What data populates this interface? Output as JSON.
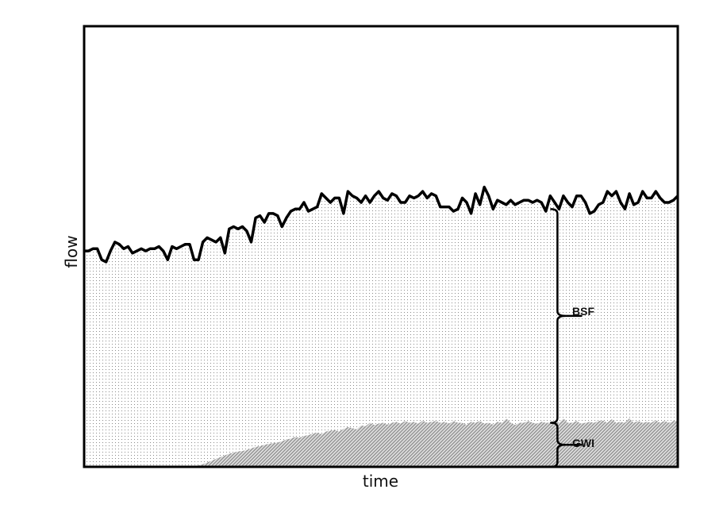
{
  "chart_data": {
    "type": "area",
    "xlabel": "time",
    "ylabel": "flow",
    "ticks": "none",
    "annotations": [
      "BSF",
      "GWI"
    ],
    "series": [
      {
        "role": "total",
        "style": "thick black line over dotted fill",
        "values": [
          0.49,
          0.49,
          0.495,
          0.495,
          0.47,
          0.465,
          0.49,
          0.51,
          0.505,
          0.495,
          0.5,
          0.485,
          0.49,
          0.495,
          0.49,
          0.495,
          0.495,
          0.5,
          0.49,
          0.47,
          0.5,
          0.495,
          0.5,
          0.505,
          0.505,
          0.47,
          0.47,
          0.51,
          0.52,
          0.515,
          0.51,
          0.52,
          0.485,
          0.54,
          0.545,
          0.54,
          0.545,
          0.535,
          0.51,
          0.565,
          0.57,
          0.555,
          0.575,
          0.575,
          0.57,
          0.545,
          0.565,
          0.58,
          0.585,
          0.585,
          0.6,
          0.58,
          0.585,
          0.59,
          0.62,
          0.61,
          0.6,
          0.61,
          0.61,
          0.575,
          0.625,
          0.615,
          0.61,
          0.6,
          0.615,
          0.6,
          0.615,
          0.625,
          0.61,
          0.605,
          0.62,
          0.615,
          0.6,
          0.6,
          0.615,
          0.61,
          0.615,
          0.625,
          0.61,
          0.62,
          0.615,
          0.59,
          0.59,
          0.59,
          0.58,
          0.585,
          0.61,
          0.6,
          0.575,
          0.62,
          0.595,
          0.635,
          0.615,
          0.585,
          0.605,
          0.6,
          0.595,
          0.605,
          0.595,
          0.6,
          0.605,
          0.605,
          0.6,
          0.605,
          0.6,
          0.58,
          0.615,
          0.6,
          0.585,
          0.615,
          0.6,
          0.59,
          0.615,
          0.615,
          0.6,
          0.575,
          0.58,
          0.595,
          0.6,
          0.625,
          0.615,
          0.625,
          0.6,
          0.585,
          0.62,
          0.595,
          0.6,
          0.625,
          0.61,
          0.61,
          0.625,
          0.61,
          0.6,
          0.6,
          0.605,
          0.615
        ]
      },
      {
        "role": "groundwater infiltration",
        "style": "grey hatched fill",
        "values": [
          0,
          0,
          0,
          0,
          0,
          0,
          0,
          0,
          0,
          0,
          0,
          0,
          0,
          0,
          0,
          0,
          0,
          0,
          0,
          0,
          0,
          0,
          0,
          0,
          0,
          0,
          0.003,
          0.006,
          0.01,
          0.014,
          0.018,
          0.022,
          0.026,
          0.03,
          0.032,
          0.035,
          0.036,
          0.038,
          0.042,
          0.045,
          0.047,
          0.05,
          0.052,
          0.054,
          0.055,
          0.058,
          0.062,
          0.064,
          0.068,
          0.066,
          0.07,
          0.072,
          0.075,
          0.078,
          0.074,
          0.08,
          0.082,
          0.084,
          0.08,
          0.086,
          0.09,
          0.088,
          0.085,
          0.094,
          0.092,
          0.1,
          0.095,
          0.098,
          0.1,
          0.096,
          0.1,
          0.102,
          0.098,
          0.104,
          0.1,
          0.102,
          0.098,
          0.105,
          0.1,
          0.102,
          0.104,
          0.1,
          0.102,
          0.098,
          0.104,
          0.1,
          0.1,
          0.095,
          0.102,
          0.1,
          0.104,
          0.098,
          0.1,
          0.096,
          0.102,
          0.1,
          0.11,
          0.1,
          0.095,
          0.1,
          0.1,
          0.104,
          0.1,
          0.098,
          0.102,
          0.1,
          0.1,
          0.104,
          0.1,
          0.11,
          0.1,
          0.1,
          0.104,
          0.098,
          0.1,
          0.102,
          0.1,
          0.104,
          0.105,
          0.1,
          0.108,
          0.1,
          0.102,
          0.1,
          0.11,
          0.1,
          0.104,
          0.1,
          0.102,
          0.1,
          0.106,
          0.1,
          0.104,
          0.1,
          0.104,
          0.105
        ]
      }
    ],
    "colors": {
      "line": "#000000",
      "frame": "#000000",
      "dots": "#8a8a8a",
      "hatch": "#9a9a9a"
    }
  },
  "annotations": {
    "bsf": "BSF",
    "gwi": "GWI"
  },
  "axes": {
    "x": "time",
    "y": "flow"
  }
}
